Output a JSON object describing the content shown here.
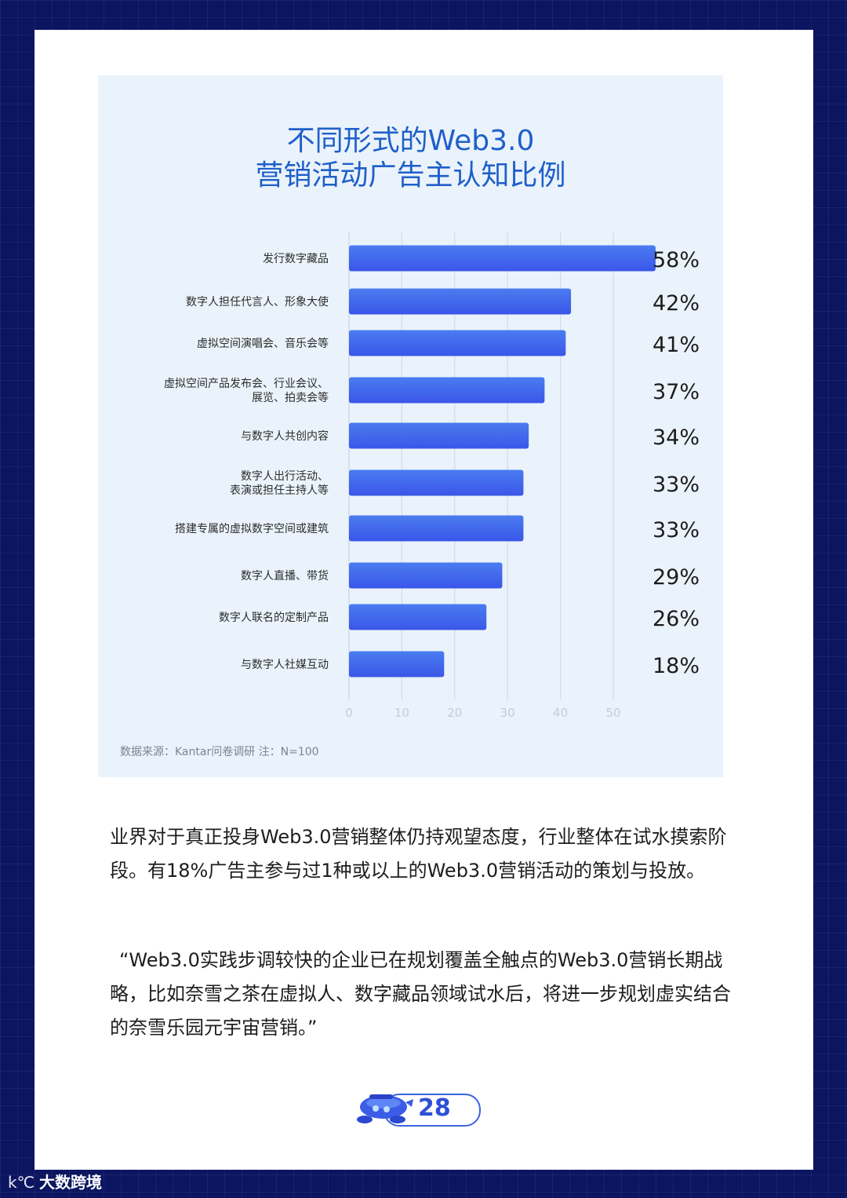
{
  "chart_data": {
    "type": "bar",
    "orientation": "horizontal",
    "title": [
      "不同形式的Web3.0",
      "营销活动广告主认知比例"
    ],
    "categories": [
      [
        "发行数字藏品"
      ],
      [
        "数字人担任代言人、形象大使"
      ],
      [
        "虚拟空间演唱会、音乐会等"
      ],
      [
        "虚拟空间产品发布会、行业会议、",
        "展览、拍卖会等"
      ],
      [
        "与数字人共创内容"
      ],
      [
        "数字人出行活动、",
        "表演或担任主持人等"
      ],
      [
        "搭建专属的虚拟数字空间或建筑"
      ],
      [
        "数字人直播、带货"
      ],
      [
        "数字人联名的定制产品"
      ],
      [
        "与数字人社媒互动"
      ]
    ],
    "values": [
      58,
      42,
      41,
      37,
      34,
      33,
      33,
      29,
      26,
      18
    ],
    "data_labels": [
      "58%",
      "42%",
      "41%",
      "37%",
      "34%",
      "33%",
      "33%",
      "29%",
      "26%",
      "18%"
    ],
    "x_ticks": [
      0,
      10,
      20,
      30,
      40,
      50
    ],
    "xlim": [
      0,
      50
    ],
    "grid": true,
    "bar_color": "#3a56e8",
    "bar_color_light": "#4a7cf0"
  },
  "source_note": "数据来源：Kantar问卷调研 注：N=100",
  "paragraphs": [
    "业界对于真正投身Web3.0营销整体仍持观望态度，行业整体在试水摸索阶段。有18%广告主参与过1种或以上的Web3.0营销活动的策划与投放。",
    "“Web3.0实践步调较快的企业已在规划覆盖全触点的Web3.0营销长期战略，比如奈雪之茶在虚拟人、数字藏品领域试水后，将进一步规划虚实结合的奈雪乐园元宇宙营销。”"
  ],
  "page_number": "28",
  "watermark": "大数跨境",
  "watermark_logo": "k℃"
}
